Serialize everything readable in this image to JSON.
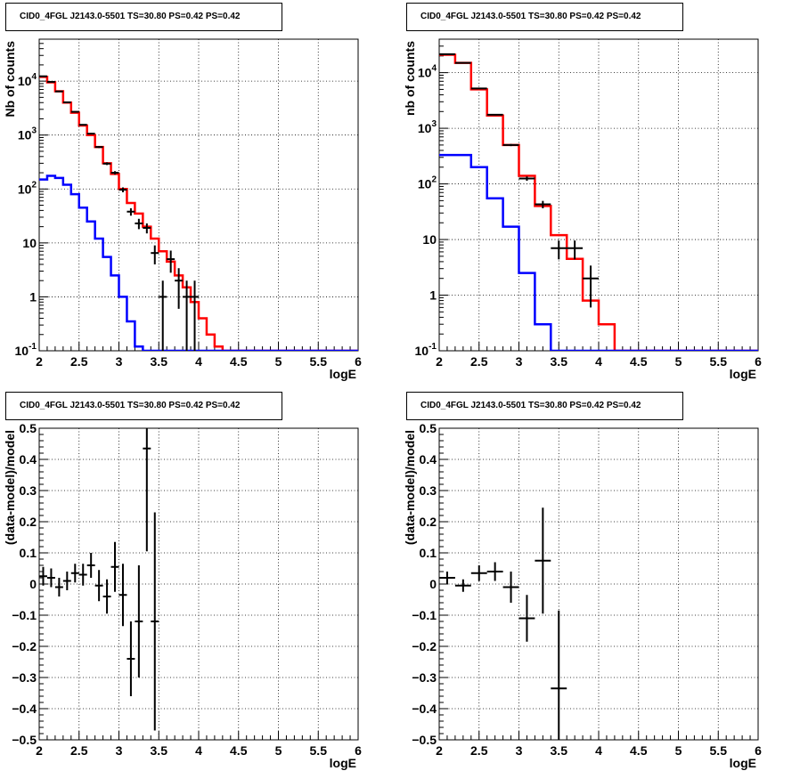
{
  "panels": [
    {
      "id": "top-left",
      "title": "CID0_4FGL J2143.0-5501 TS=30.80 PS=0.42 PS=0.42",
      "xlabel": "logE",
      "ylabel": "Nb of counts",
      "x_ticks": [
        "2",
        "2.5",
        "3",
        "3.5",
        "4",
        "4.5",
        "5",
        "5.5",
        "6"
      ],
      "y_ticks": [
        "10^-1",
        "1",
        "10",
        "10^2",
        "10^3",
        "10^4"
      ],
      "grid": true
    },
    {
      "id": "top-right",
      "title": "CID0_4FGL J2143.0-5501 TS=30.80 PS=0.42 PS=0.42",
      "xlabel": "logE",
      "ylabel": "nb of counts",
      "x_ticks": [
        "2",
        "2.5",
        "3",
        "3.5",
        "4",
        "4.5",
        "5",
        "5.5",
        "6"
      ],
      "y_ticks": [
        "10^-1",
        "1",
        "10",
        "10^2",
        "10^3",
        "10^4"
      ],
      "grid": true
    },
    {
      "id": "bottom-left",
      "title": "CID0_4FGL J2143.0-5501 TS=30.80 PS=0.42 PS=0.42",
      "xlabel": "logE",
      "ylabel": "(data-model)/model",
      "x_ticks": [
        "2",
        "2.5",
        "3",
        "3.5",
        "4",
        "4.5",
        "5",
        "5.5",
        "6"
      ],
      "y_ticks": [
        "−0.5",
        "−0.4",
        "−0.3",
        "−0.2",
        "−0.1",
        "0",
        "0.1",
        "0.2",
        "0.3",
        "0.4",
        "0.5"
      ],
      "grid": true
    },
    {
      "id": "bottom-right",
      "title": "CID0_4FGL J2143.0-5501 TS=30.80 PS=0.42 PS=0.42",
      "xlabel": "logE",
      "ylabel": "(data-model)/model",
      "x_ticks": [
        "2",
        "2.5",
        "3",
        "3.5",
        "4",
        "4.5",
        "5",
        "5.5",
        "6"
      ],
      "y_ticks": [
        "−0.5",
        "−0.4",
        "−0.3",
        "−0.2",
        "−0.1",
        "0",
        "0.1",
        "0.2",
        "0.3",
        "0.4",
        "0.5"
      ],
      "grid": true
    }
  ],
  "colors": {
    "total_model": "#ff0000",
    "background_model": "#0000ff",
    "data": "#000000",
    "frame": "#000000"
  },
  "chart_data": [
    {
      "type": "histogram",
      "panel": "top-left",
      "xlim": [
        2,
        6
      ],
      "ylim": [
        0.1,
        60000
      ],
      "ylog": true,
      "bin_width": 0.1,
      "series": [
        {
          "role": "total-model",
          "style": "step",
          "color": "#ff0000",
          "x": [
            2.0,
            2.1,
            2.2,
            2.3,
            2.4,
            2.5,
            2.6,
            2.7,
            2.8,
            2.9,
            3.0,
            3.1,
            3.2,
            3.3,
            3.4,
            3.5,
            3.6,
            3.7,
            3.8,
            3.9,
            4.0,
            4.1,
            4.2,
            4.3,
            4.4,
            4.5,
            4.6,
            4.7,
            4.8,
            4.9,
            5.0,
            5.1,
            5.2,
            5.3,
            5.4,
            5.5,
            5.6,
            5.7,
            5.8,
            5.9
          ],
          "values": [
            12000,
            9500,
            6500,
            4000,
            2600,
            1500,
            1000,
            600,
            300,
            190,
            100,
            55,
            35,
            20,
            12,
            7,
            4.5,
            2.5,
            1.5,
            0.8,
            0.4,
            0.2,
            0.12,
            0.1,
            0.1,
            0.1,
            0.1,
            0.1,
            0.1,
            0.1,
            0.1,
            0.1,
            0.1,
            0.1,
            0.1,
            0.1,
            0.1,
            0.1,
            0.1,
            0.1
          ]
        },
        {
          "role": "background-model",
          "style": "step",
          "color": "#0000ff",
          "x": [
            2.0,
            2.1,
            2.2,
            2.3,
            2.4,
            2.5,
            2.6,
            2.7,
            2.8,
            2.9,
            3.0,
            3.1,
            3.2,
            3.3,
            3.4,
            3.5,
            3.6,
            3.7,
            3.8,
            3.9,
            4.0,
            4.1,
            4.2,
            4.3,
            4.4,
            4.5,
            4.6,
            4.7,
            4.8,
            4.9,
            5.0,
            5.1,
            5.2,
            5.3,
            5.4,
            5.5,
            5.6,
            5.7,
            5.8,
            5.9
          ],
          "values": [
            150,
            175,
            160,
            120,
            80,
            45,
            25,
            12,
            5.5,
            2.5,
            1.0,
            0.35,
            0.12,
            0.1,
            0.1,
            0.1,
            0.1,
            0.1,
            0.1,
            0.1,
            0.1,
            0.1,
            0.1,
            0.1,
            0.1,
            0.1,
            0.1,
            0.1,
            0.1,
            0.1,
            0.1,
            0.1,
            0.1,
            0.1,
            0.1,
            0.1,
            0.1,
            0.1,
            0.1,
            0.1
          ]
        },
        {
          "role": "data",
          "style": "errorbar",
          "color": "#000000",
          "x": [
            2.05,
            2.15,
            2.25,
            2.35,
            2.45,
            2.55,
            2.65,
            2.75,
            2.85,
            2.95,
            3.05,
            3.15,
            3.25,
            3.35,
            3.45,
            3.55,
            3.65,
            3.75,
            3.85,
            3.95
          ],
          "values": [
            12300,
            9700,
            6450,
            4050,
            2700,
            1550,
            1060,
            600,
            295,
            200,
            97,
            38,
            23,
            19,
            6.5,
            1.0,
            5.0,
            2.0,
            1.0,
            1.0
          ],
          "err_low": [
            111,
            98,
            80,
            64,
            52,
            39,
            33,
            24,
            17,
            14,
            10,
            6,
            5,
            4,
            2.5,
            0.9,
            2.2,
            1.4,
            0.9,
            0.9
          ],
          "err_high": [
            111,
            98,
            80,
            64,
            52,
            39,
            33,
            24,
            17,
            14,
            10,
            6,
            5,
            4,
            2.5,
            1.0,
            2.2,
            1.4,
            1.0,
            1.0
          ]
        }
      ]
    },
    {
      "type": "histogram",
      "panel": "top-right",
      "xlim": [
        2,
        6
      ],
      "ylim": [
        0.1,
        40000
      ],
      "ylog": true,
      "bin_width": 0.2,
      "series": [
        {
          "role": "total-model",
          "style": "step",
          "color": "#ff0000",
          "x": [
            2.0,
            2.2,
            2.4,
            2.6,
            2.8,
            3.0,
            3.2,
            3.4,
            3.6,
            3.8,
            4.0,
            4.2,
            4.4,
            4.6,
            4.8,
            5.0,
            5.2,
            5.4,
            5.6,
            5.8
          ],
          "values": [
            21000,
            15000,
            5000,
            1700,
            500,
            140,
            40,
            12,
            4.5,
            0.8,
            0.3,
            0.1,
            0.1,
            0.1,
            0.1,
            0.1,
            0.1,
            0.1,
            0.1,
            0.1
          ]
        },
        {
          "role": "background-model",
          "style": "step",
          "color": "#0000ff",
          "x": [
            2.0,
            2.2,
            2.4,
            2.6,
            2.8,
            3.0,
            3.2,
            3.4,
            3.6,
            3.8,
            4.0,
            4.2,
            4.4,
            4.6,
            4.8,
            5.0,
            5.2,
            5.4,
            5.6,
            5.8
          ],
          "values": [
            330,
            330,
            200,
            55,
            17,
            2.5,
            0.3,
            0.1,
            0.1,
            0.1,
            0.1,
            0.1,
            0.1,
            0.1,
            0.1,
            0.1,
            0.1,
            0.1,
            0.1,
            0.1
          ]
        },
        {
          "role": "data",
          "style": "errorbar",
          "color": "#000000",
          "x": [
            2.1,
            2.3,
            2.5,
            2.7,
            2.9,
            3.1,
            3.3,
            3.5,
            3.7,
            3.9
          ],
          "values": [
            21500,
            15000,
            5200,
            1750,
            500,
            125,
            43,
            7,
            7,
            2
          ],
          "err_low": [
            147,
            122,
            72,
            42,
            22,
            11,
            6.5,
            2.6,
            2.6,
            1.4
          ],
          "err_high": [
            147,
            122,
            72,
            42,
            22,
            11,
            6.5,
            2.6,
            2.6,
            1.4
          ]
        }
      ]
    },
    {
      "type": "scatter",
      "panel": "bottom-left",
      "xlim": [
        2,
        6
      ],
      "ylim": [
        -0.5,
        0.5
      ],
      "series": [
        {
          "role": "residuals",
          "style": "errorbar",
          "color": "#000000",
          "x": [
            2.05,
            2.15,
            2.25,
            2.35,
            2.45,
            2.55,
            2.65,
            2.75,
            2.85,
            2.95,
            3.05,
            3.15,
            3.25,
            3.35,
            3.45
          ],
          "values": [
            0.025,
            0.02,
            -0.01,
            0.01,
            0.035,
            0.03,
            0.06,
            -0.005,
            -0.04,
            0.055,
            -0.035,
            -0.24,
            -0.12,
            0.435,
            -0.12
          ],
          "err": [
            0.03,
            0.03,
            0.03,
            0.03,
            0.03,
            0.035,
            0.04,
            0.05,
            0.055,
            0.08,
            0.1,
            0.12,
            0.18,
            0.33,
            0.35
          ],
          "x_half_width": 0.05
        }
      ]
    },
    {
      "type": "scatter",
      "panel": "bottom-right",
      "xlim": [
        2,
        6
      ],
      "ylim": [
        -0.5,
        0.5
      ],
      "series": [
        {
          "role": "residuals",
          "style": "errorbar",
          "color": "#000000",
          "x": [
            2.1,
            2.3,
            2.5,
            2.7,
            2.9,
            3.1,
            3.3,
            3.5
          ],
          "values": [
            0.02,
            -0.005,
            0.035,
            0.04,
            -0.01,
            -0.11,
            0.075,
            -0.335
          ],
          "err": [
            0.02,
            0.02,
            0.025,
            0.03,
            0.05,
            0.075,
            0.17,
            0.25
          ],
          "x_half_width": 0.1
        }
      ]
    }
  ]
}
